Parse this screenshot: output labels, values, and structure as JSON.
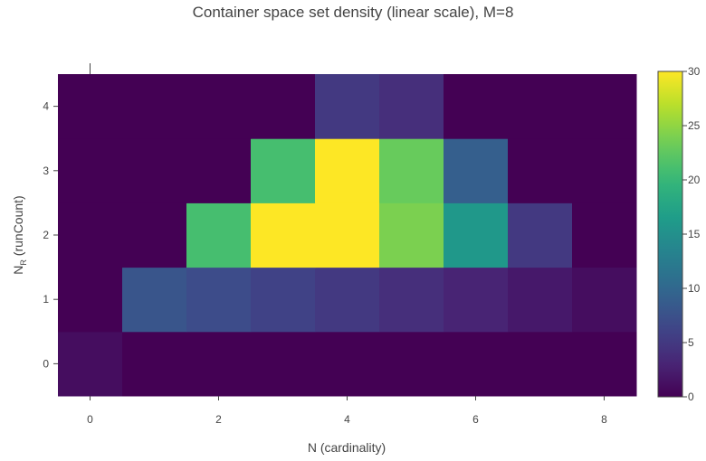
{
  "chart_data": {
    "type": "heatmap",
    "title": "Container space set density (linear scale), M=8",
    "xlabel": "N (cardinality)",
    "ylabel_main": "N",
    "ylabel_sub": "R",
    "ylabel_rest": " (runCount)",
    "x": [
      0,
      1,
      2,
      3,
      4,
      5,
      6,
      7,
      8
    ],
    "y": [
      0,
      1,
      2,
      3,
      4
    ],
    "x_ticks": [
      0,
      2,
      4,
      6,
      8
    ],
    "y_ticks": [
      0,
      1,
      2,
      3,
      4
    ],
    "xlim": [
      -0.5,
      8.5
    ],
    "ylim": [
      -0.5,
      4.5
    ],
    "z": [
      [
        1,
        0,
        0,
        0,
        0,
        0,
        0,
        0,
        0
      ],
      [
        0,
        8,
        7,
        6,
        5,
        4,
        3,
        2,
        1
      ],
      [
        0,
        0,
        21,
        30,
        30,
        24,
        16,
        5,
        0
      ],
      [
        0,
        0,
        0,
        21,
        30,
        23,
        9,
        0,
        0
      ],
      [
        0,
        0,
        0,
        0,
        5,
        4,
        0,
        0,
        0
      ]
    ],
    "colorscale": "Viridis",
    "zmin": 0,
    "zmax": 30,
    "colorbar_ticks": [
      0,
      5,
      10,
      15,
      20,
      25,
      30
    ]
  }
}
